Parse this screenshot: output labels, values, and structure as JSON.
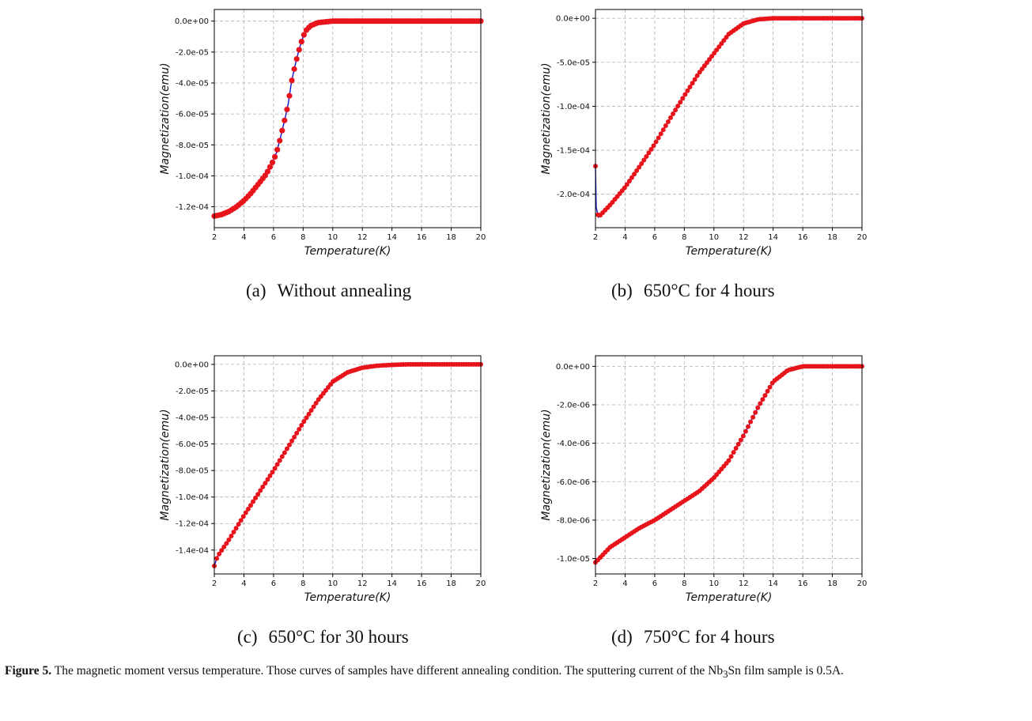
{
  "chart_data": [
    {
      "type": "line",
      "caption_label": "(a)",
      "caption_text": "Without annealing",
      "xlabel": "Temperature(K)",
      "ylabel": "Magnetization(emu)",
      "xlim": [
        2,
        20
      ],
      "ylim": [
        -0.0001335,
        7.5e-06
      ],
      "xticks": [
        2,
        4,
        6,
        8,
        10,
        12,
        14,
        16,
        18,
        20
      ],
      "yticks": [
        0,
        -2e-05,
        -4e-05,
        -6e-05,
        -8e-05,
        -0.0001,
        -0.00012
      ],
      "ytick_labels": [
        "0.0e+00",
        "-2.0e-05",
        "-4.0e-05",
        "-6.0e-05",
        "-8.0e-05",
        "-1.0e-04",
        "-1.2e-04"
      ],
      "grid": true,
      "line_color": "#1010d0",
      "marker_color": "#e8141c",
      "series": [
        {
          "x": [
            2.0,
            2.5,
            3.0,
            3.5,
            4.0,
            4.5,
            5.0,
            5.5,
            6.0,
            6.2,
            6.4,
            6.6,
            6.8,
            7.0,
            7.2,
            7.4,
            7.6,
            7.8,
            8.0,
            8.2,
            8.5,
            9.0,
            9.5,
            10.0,
            11.0,
            12.0,
            14.0,
            16.0,
            18.0,
            20.0
          ],
          "y": [
            -0.000126,
            -0.000125,
            -0.000123,
            -0.00012,
            -0.000116,
            -0.000111,
            -0.000105,
            -9.9e-05,
            -9e-05,
            -8.5e-05,
            -7.8e-05,
            -7e-05,
            -6.2e-05,
            -5.3e-05,
            -4e-05,
            -3.1e-05,
            -2.3e-05,
            -1.6e-05,
            -1e-05,
            -6e-06,
            -3e-06,
            -1e-06,
            -5e-07,
            0,
            0,
            0,
            0,
            0,
            0,
            0
          ]
        }
      ]
    },
    {
      "type": "line",
      "caption_label": "(b)",
      "caption_text": "650°C for 4 hours",
      "xlabel": "Temperature(K)",
      "ylabel": "Magnetization(emu)",
      "xlim": [
        2,
        20
      ],
      "ylim": [
        -0.000238,
        1e-05
      ],
      "xticks": [
        2,
        4,
        6,
        8,
        10,
        12,
        14,
        16,
        18,
        20
      ],
      "yticks": [
        0,
        -5e-05,
        -0.0001,
        -0.00015,
        -0.0002
      ],
      "ytick_labels": [
        "0.0e+00",
        "-5.0e-05",
        "-1.0e-04",
        "-1.5e-04",
        "-2.0e-04"
      ],
      "grid": true,
      "line_color": "#1010d0",
      "marker_color": "#e8141c",
      "series": [
        {
          "x": [
            2.0,
            2.05,
            2.2,
            3.0,
            4.0,
            5.0,
            6.0,
            7.0,
            8.0,
            9.0,
            10.0,
            11.0,
            12.0,
            13.0,
            14.0,
            16.0,
            18.0,
            20.0
          ],
          "y": [
            -0.000168,
            -0.000215,
            -0.000226,
            -0.000212,
            -0.000192,
            -0.000168,
            -0.000143,
            -0.000115,
            -8.8e-05,
            -6.2e-05,
            -4e-05,
            -1.8e-05,
            -6e-06,
            -1.2e-06,
            0,
            0,
            0,
            0
          ]
        }
      ]
    },
    {
      "type": "line",
      "caption_label": "(c)",
      "caption_text": "650°C for 30 hours",
      "xlabel": "Temperature(K)",
      "ylabel": "Magnetization(emu)",
      "xlim": [
        2,
        20
      ],
      "ylim": [
        -0.000158,
        6.5e-06
      ],
      "xticks": [
        2,
        4,
        6,
        8,
        10,
        12,
        14,
        16,
        18,
        20
      ],
      "yticks": [
        0,
        -2e-05,
        -4e-05,
        -6e-05,
        -8e-05,
        -0.0001,
        -0.00012,
        -0.00014
      ],
      "ytick_labels": [
        "0.0e+00",
        "-2.0e-05",
        "-4.0e-05",
        "-6.0e-05",
        "-8.0e-05",
        "-1.0e-04",
        "-1.2e-04",
        "-1.4e-04"
      ],
      "grid": true,
      "line_color": "#1010d0",
      "marker_color": "#e8141c",
      "series": [
        {
          "x": [
            2.0,
            2.2,
            3.0,
            4.0,
            5.0,
            6.0,
            7.0,
            8.0,
            9.0,
            10.0,
            11.0,
            12.0,
            13.0,
            14.0,
            15.0,
            16.0,
            18.0,
            20.0
          ],
          "y": [
            -0.000152,
            -0.000145,
            -0.000132,
            -0.000114,
            -9.7e-05,
            -8e-05,
            -6.2e-05,
            -4.4e-05,
            -2.7e-05,
            -1.3e-05,
            -6e-06,
            -2.5e-06,
            -1e-06,
            -4e-07,
            0,
            0,
            0,
            0
          ]
        }
      ]
    },
    {
      "type": "line",
      "caption_label": "(d)",
      "caption_text": "750°C for 4 hours",
      "xlabel": "Temperature(K)",
      "ylabel": "Magnetization(emu)",
      "xlim": [
        2,
        20
      ],
      "ylim": [
        -1.08e-05,
        5.5e-07
      ],
      "xticks": [
        2,
        4,
        6,
        8,
        10,
        12,
        14,
        16,
        18,
        20
      ],
      "yticks": [
        0,
        -2e-06,
        -4e-06,
        -6e-06,
        -8e-06,
        -1e-05
      ],
      "ytick_labels": [
        "0.0e+00",
        "-2.0e-06",
        "-4.0e-06",
        "-6.0e-06",
        "-8.0e-06",
        "-1.0e-05"
      ],
      "grid": true,
      "line_color": "#1010d0",
      "marker_color": "#e8141c",
      "series": [
        {
          "x": [
            2.0,
            3.0,
            4.0,
            5.0,
            6.0,
            7.0,
            8.0,
            9.0,
            10.0,
            11.0,
            12.0,
            13.0,
            14.0,
            15.0,
            16.0,
            17.0,
            18.0,
            19.0,
            20.0
          ],
          "y": [
            -1.02e-05,
            -9.4e-06,
            -8.9e-06,
            -8.4e-06,
            -8e-06,
            -7.5e-06,
            -7e-06,
            -6.5e-06,
            -5.8e-06,
            -4.9e-06,
            -3.6e-06,
            -2.1e-06,
            -8e-07,
            -2e-07,
            0,
            0,
            0,
            0,
            0
          ]
        }
      ]
    }
  ],
  "figure_caption": {
    "label": "Figure 5.",
    "text_before": " The magnetic moment versus temperature. Those curves of samples have different annealing condition. The sputtering current of the Nb",
    "subscript": "3",
    "text_after": "Sn film sample is 0.5A."
  }
}
